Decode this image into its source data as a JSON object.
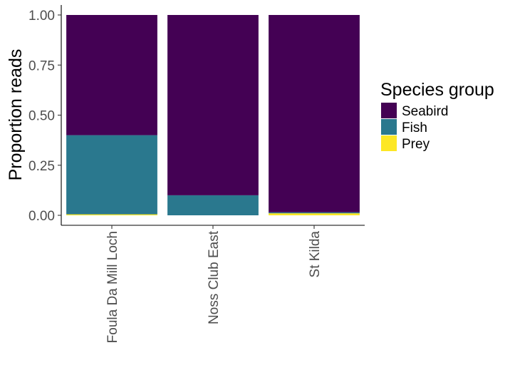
{
  "chart_data": {
    "type": "bar",
    "stacked": true,
    "title": "",
    "xlabel": "",
    "ylabel": "Proportion reads",
    "ylim": [
      0,
      1
    ],
    "y_ticks": [
      "0.00",
      "0.25",
      "0.50",
      "0.75",
      "1.00"
    ],
    "y_tick_values": [
      0,
      0.25,
      0.5,
      0.75,
      1.0
    ],
    "categories": [
      "Foula Da Mill Loch",
      "Noss Club East",
      "St Kilda"
    ],
    "series": [
      {
        "name": "Prey",
        "color": "#FDE725",
        "values": [
          0.005,
          0.0,
          0.01
        ]
      },
      {
        "name": "Fish",
        "color": "#2A788E",
        "values": [
          0.395,
          0.1,
          0.005
        ]
      },
      {
        "name": "Seabird",
        "color": "#440154",
        "values": [
          0.6,
          0.9,
          0.985
        ]
      }
    ],
    "legend": {
      "title": "Species group",
      "placement": "right",
      "entries": [
        {
          "label": "Seabird",
          "color": "#440154"
        },
        {
          "label": "Fish",
          "color": "#2A788E"
        },
        {
          "label": "Prey",
          "color": "#FDE725"
        }
      ]
    }
  }
}
